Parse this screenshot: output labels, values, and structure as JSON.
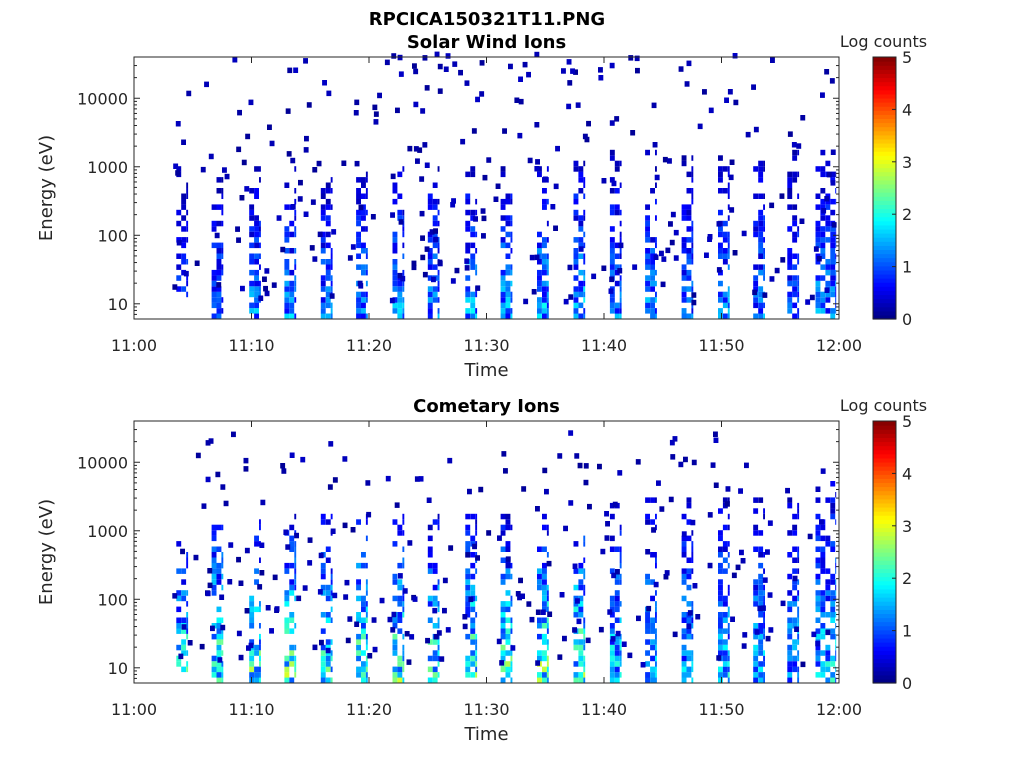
{
  "figure": {
    "title": "RPCICA150321T11.PNG"
  },
  "chart_data": [
    {
      "type": "heatmap",
      "title": "Solar Wind Ions",
      "xlabel": "Time",
      "ylabel": "Energy (eV)",
      "x_ticks": [
        "11:00",
        "11:10",
        "11:20",
        "11:30",
        "11:40",
        "11:50",
        "12:00"
      ],
      "x_range_minutes": [
        0,
        60
      ],
      "y_scale": "log",
      "y_ticks": [
        10,
        100,
        1000,
        10000
      ],
      "y_tick_labels": [
        "10",
        "100",
        "1000",
        "10000"
      ],
      "ylim": [
        6,
        40000
      ],
      "colorbar": {
        "label": "Log counts",
        "ticks": [
          "0",
          "1",
          "2",
          "3",
          "4",
          "5"
        ],
        "range": [
          0,
          5
        ],
        "colormap": "jet"
      },
      "bursts": [
        {
          "t": 3.6,
          "w": 1.0,
          "emin": 12,
          "emax": 900,
          "peak": 1.1
        },
        {
          "t": 6.6,
          "w": 1.0,
          "emin": 6,
          "emax": 700,
          "peak": 1.4
        },
        {
          "t": 9.8,
          "w": 1.0,
          "emin": 6,
          "emax": 900,
          "peak": 1.6
        },
        {
          "t": 12.8,
          "w": 1.0,
          "emin": 6,
          "emax": 1000,
          "peak": 1.7
        },
        {
          "t": 15.9,
          "w": 1.0,
          "emin": 6,
          "emax": 800,
          "peak": 1.5
        },
        {
          "t": 18.9,
          "w": 1.0,
          "emin": 6,
          "emax": 1000,
          "peak": 1.6
        },
        {
          "t": 22.0,
          "w": 1.0,
          "emin": 6,
          "emax": 900,
          "peak": 1.8
        },
        {
          "t": 25.0,
          "w": 1.0,
          "emin": 6,
          "emax": 1000,
          "peak": 1.6
        },
        {
          "t": 28.2,
          "w": 1.0,
          "emin": 6,
          "emax": 1000,
          "peak": 1.8
        },
        {
          "t": 31.2,
          "w": 1.0,
          "emin": 6,
          "emax": 1000,
          "peak": 1.8
        },
        {
          "t": 34.3,
          "w": 1.0,
          "emin": 6,
          "emax": 1000,
          "peak": 1.9
        },
        {
          "t": 37.4,
          "w": 1.0,
          "emin": 6,
          "emax": 1200,
          "peak": 1.9
        },
        {
          "t": 40.5,
          "w": 1.0,
          "emin": 6,
          "emax": 1500,
          "peak": 1.5
        },
        {
          "t": 43.5,
          "w": 1.0,
          "emin": 6,
          "emax": 1500,
          "peak": 1.6
        },
        {
          "t": 46.6,
          "w": 1.0,
          "emin": 6,
          "emax": 1500,
          "peak": 1.4
        },
        {
          "t": 49.7,
          "w": 1.0,
          "emin": 6,
          "emax": 1500,
          "peak": 1.6
        },
        {
          "t": 52.7,
          "w": 1.0,
          "emin": 6,
          "emax": 1500,
          "peak": 1.5
        },
        {
          "t": 55.6,
          "w": 1.0,
          "emin": 6,
          "emax": 1500,
          "peak": 1.3
        },
        {
          "t": 58.0,
          "w": 1.7,
          "emin": 6,
          "emax": 2500,
          "peak": 1.6
        }
      ]
    },
    {
      "type": "heatmap",
      "title": "Cometary Ions",
      "xlabel": "Time",
      "ylabel": "Energy (eV)",
      "x_ticks": [
        "11:00",
        "11:10",
        "11:20",
        "11:30",
        "11:40",
        "11:50",
        "12:00"
      ],
      "x_range_minutes": [
        0,
        60
      ],
      "y_scale": "log",
      "y_ticks": [
        10,
        100,
        1000,
        10000
      ],
      "y_tick_labels": [
        "10",
        "100",
        "1000",
        "10000"
      ],
      "ylim": [
        6,
        40000
      ],
      "colorbar": {
        "label": "Log counts",
        "ticks": [
          "0",
          "1",
          "2",
          "3",
          "4",
          "5"
        ],
        "range": [
          0,
          5
        ],
        "colormap": "jet"
      },
      "bursts": [
        {
          "t": 3.6,
          "w": 1.0,
          "emin": 8,
          "emax": 600,
          "peak": 2.6
        },
        {
          "t": 6.6,
          "w": 1.0,
          "emin": 6,
          "emax": 1500,
          "peak": 2.8
        },
        {
          "t": 9.8,
          "w": 1.0,
          "emin": 6,
          "emax": 1500,
          "peak": 2.7
        },
        {
          "t": 12.8,
          "w": 1.0,
          "emin": 6,
          "emax": 1500,
          "peak": 2.8
        },
        {
          "t": 15.9,
          "w": 1.0,
          "emin": 6,
          "emax": 1500,
          "peak": 2.6
        },
        {
          "t": 18.9,
          "w": 1.0,
          "emin": 6,
          "emax": 1500,
          "peak": 2.8
        },
        {
          "t": 22.0,
          "w": 1.0,
          "emin": 6,
          "emax": 1500,
          "peak": 2.7
        },
        {
          "t": 25.0,
          "w": 1.0,
          "emin": 6,
          "emax": 1500,
          "peak": 2.6
        },
        {
          "t": 28.2,
          "w": 1.0,
          "emin": 6,
          "emax": 1500,
          "peak": 2.8
        },
        {
          "t": 31.2,
          "w": 1.0,
          "emin": 6,
          "emax": 1500,
          "peak": 2.7
        },
        {
          "t": 34.3,
          "w": 1.0,
          "emin": 6,
          "emax": 1500,
          "peak": 2.9
        },
        {
          "t": 37.4,
          "w": 1.0,
          "emin": 6,
          "emax": 1500,
          "peak": 2.9
        },
        {
          "t": 40.5,
          "w": 1.0,
          "emin": 6,
          "emax": 3000,
          "peak": 2.1
        },
        {
          "t": 43.5,
          "w": 1.0,
          "emin": 6,
          "emax": 3000,
          "peak": 2.0
        },
        {
          "t": 46.6,
          "w": 1.0,
          "emin": 6,
          "emax": 3000,
          "peak": 1.9
        },
        {
          "t": 49.7,
          "w": 1.0,
          "emin": 6,
          "emax": 3000,
          "peak": 2.0
        },
        {
          "t": 52.7,
          "w": 1.0,
          "emin": 6,
          "emax": 3000,
          "peak": 1.9
        },
        {
          "t": 55.6,
          "w": 1.0,
          "emin": 6,
          "emax": 3000,
          "peak": 1.9
        },
        {
          "t": 58.0,
          "w": 1.7,
          "emin": 6,
          "emax": 6000,
          "peak": 2.1
        }
      ]
    }
  ]
}
